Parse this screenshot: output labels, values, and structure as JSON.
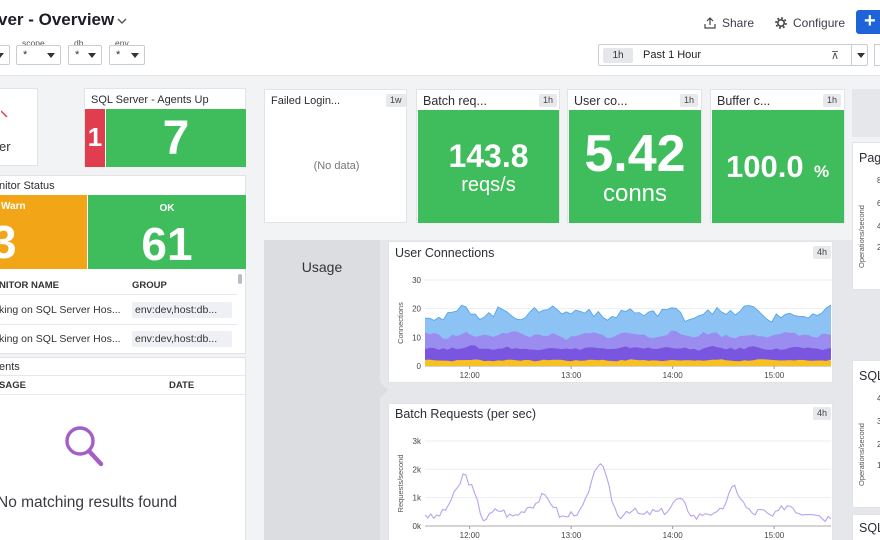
{
  "header": {
    "title": "ver - Overview",
    "share_label": "Share",
    "configure_label": "Configure",
    "add_label": "+"
  },
  "variables": [
    {
      "label": "",
      "value": "*"
    },
    {
      "label": "scope",
      "value": "*"
    },
    {
      "label": "db",
      "value": "*"
    },
    {
      "label": "env",
      "value": "*"
    }
  ],
  "time": {
    "chip": "1h",
    "text": "Past 1 Hour"
  },
  "status_panel": {
    "text": "er"
  },
  "agents_up": {
    "title": "SQL Server - Agents Up",
    "red_value": "1",
    "green_value": "7"
  },
  "monitor_status": {
    "title": "nitor Status",
    "warn_label": "Warn",
    "warn_value": "3",
    "ok_label": "OK",
    "ok_value": "61",
    "col_name": "NITOR NAME",
    "col_group": "GROUP",
    "rows": [
      {
        "name": "king on SQL Server Hos...",
        "group": "env:dev,host:db..."
      },
      {
        "name": "king on SQL Server Hos...",
        "group": "env:dev,host:db..."
      }
    ]
  },
  "events": {
    "title": "ents",
    "col_message": "SAGE",
    "col_date": "DATE",
    "empty_text": "No matching results found"
  },
  "failed_logins": {
    "title": "Failed Login...",
    "badge": "1w",
    "empty": "(No data)"
  },
  "batch_req": {
    "title": "Batch req...",
    "badge": "1h",
    "value": "143.8",
    "unit": "reqs/s"
  },
  "user_conn": {
    "title": "User co...",
    "badge": "1h",
    "value": "5.42",
    "unit": "conns"
  },
  "buffer": {
    "title": "Buffer c...",
    "badge": "1h",
    "value": "100.0",
    "unit": "%"
  },
  "usage_group": {
    "title": "Usage"
  },
  "right_col": {
    "pag_title": "Pag",
    "sql_title_1": "SQL",
    "sql_title_2": "SQL",
    "ylabel": "Operations/second",
    "ticks": [
      "8",
      "6",
      "4",
      "2",
      "4",
      "3",
      "2",
      "1"
    ]
  },
  "colors": {
    "green": "#3fbd5c",
    "orange": "#f2a516",
    "red": "#e03e4e",
    "accent": "#1f63d8",
    "event_icon": "#a45ec9"
  },
  "chart_data": [
    {
      "type": "area",
      "title": "User Connections",
      "badge": "4h",
      "ylabel": "Connections",
      "yticks": [
        "0",
        "10",
        "20",
        "30"
      ],
      "ylim": [
        0,
        30
      ],
      "xticks": [
        "12:00",
        "13:00",
        "14:00",
        "15:00"
      ],
      "series": [
        {
          "color": "#f7c122",
          "values": [
            2,
            2,
            2,
            2,
            2,
            2,
            2,
            2,
            2,
            2
          ]
        },
        {
          "color": "#7a55e0",
          "values": [
            6,
            6.5,
            6,
            6.2,
            6,
            6.4,
            6,
            6.3,
            6.1,
            6
          ]
        },
        {
          "color": "#9b8cf0",
          "values": [
            11,
            10.5,
            11.5,
            10,
            11,
            10.8,
            11.2,
            10.5,
            11,
            10.7
          ]
        },
        {
          "color": "#78b9f2",
          "values": [
            17,
            19,
            18,
            20,
            17.5,
            19,
            18,
            19.5,
            17,
            18.5
          ]
        }
      ]
    },
    {
      "type": "line",
      "title": "Batch Requests (per sec)",
      "badge": "4h",
      "ylabel": "Requests/second",
      "yticks": [
        "0k",
        "1k",
        "2k",
        "3k"
      ],
      "ylim": [
        0,
        3000
      ],
      "xticks": [
        "12:00",
        "13:00",
        "14:00",
        "15:00"
      ],
      "series": [
        {
          "color": "#b9a2ee",
          "values": [
            420,
            380,
            1900,
            350,
            500,
            400,
            1100,
            420,
            380,
            2300,
            400,
            520,
            380,
            900,
            400,
            380,
            1300,
            420,
            450,
            700,
            400,
            380
          ]
        }
      ]
    }
  ]
}
